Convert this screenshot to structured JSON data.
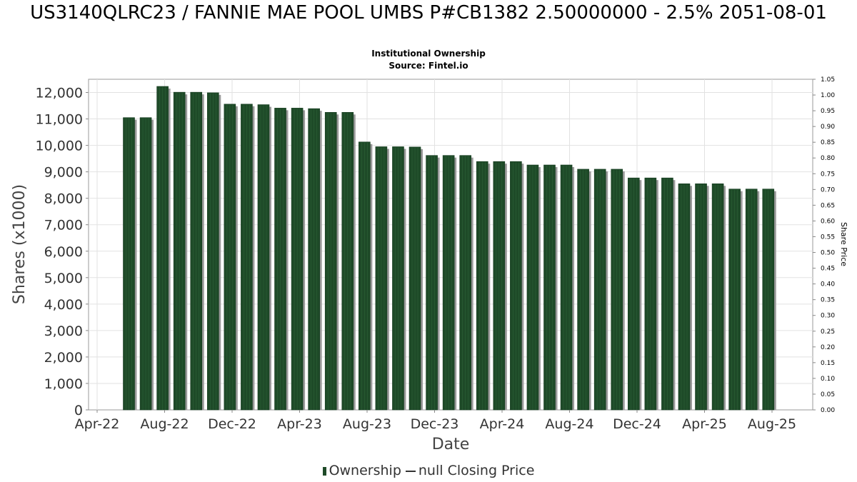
{
  "chart_data": {
    "type": "bar",
    "title": "US3140QLRC23 / FANNIE MAE POOL UMBS P#CB1382 2.50000000 - 2.5% 2051-08-01",
    "subtitle": "Institutional Ownership",
    "source": "Source: Fintel.io",
    "xlabel": "Date",
    "ylabel": "Shares (x1000)",
    "y2label": "Share Price",
    "ylim": [
      0,
      12500
    ],
    "y2lim": [
      0,
      1.05
    ],
    "yticks": [
      "0",
      "1,000",
      "2,000",
      "3,000",
      "4,000",
      "5,000",
      "6,000",
      "7,000",
      "8,000",
      "9,000",
      "10,000",
      "11,000",
      "12,000"
    ],
    "y2ticks": [
      "0.00",
      "0.05",
      "0.10",
      "0.15",
      "0.20",
      "0.25",
      "0.30",
      "0.35",
      "0.40",
      "0.45",
      "0.50",
      "0.55",
      "0.60",
      "0.65",
      "0.70",
      "0.75",
      "0.80",
      "0.85",
      "0.90",
      "0.95",
      "1.00",
      "1.05"
    ],
    "xticks": [
      "Apr-22",
      "Aug-22",
      "Dec-22",
      "Apr-23",
      "Aug-23",
      "Dec-23",
      "Apr-24",
      "Aug-24",
      "Dec-24",
      "Apr-25",
      "Aug-25"
    ],
    "grid": true,
    "legend_position": "bottom",
    "series": [
      {
        "name": "Ownership",
        "color": "#1e4a28",
        "values": [
          11050,
          11050,
          12230,
          12010,
          12010,
          11990,
          11560,
          11560,
          11540,
          11410,
          11410,
          11390,
          11250,
          11250,
          10130,
          9950,
          9950,
          9940,
          9620,
          9620,
          9620,
          9390,
          9390,
          9390,
          9260,
          9260,
          9260,
          9100,
          9100,
          9100,
          8770,
          8770,
          8770,
          8550,
          8550,
          8550,
          8350,
          8350,
          8350
        ]
      }
    ],
    "legend": {
      "bar_label": "Ownership",
      "line_label": "null Closing Price"
    }
  }
}
